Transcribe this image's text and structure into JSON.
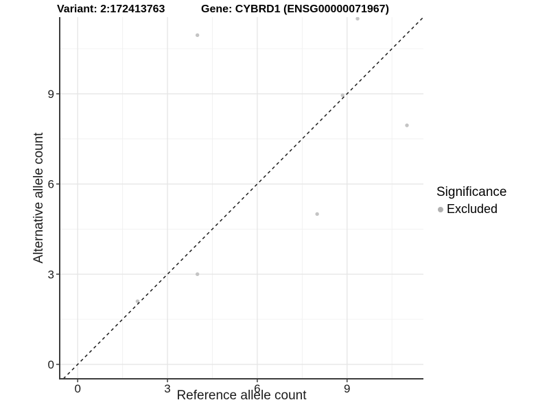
{
  "titles": {
    "variant": "Variant: 2:172413763",
    "gene": "Gene: CYBRD1 (ENSG00000071967)"
  },
  "legend": {
    "title": "Significance",
    "items": [
      {
        "label": "Excluded",
        "color": "#b0b0b0"
      }
    ]
  },
  "chart_data": {
    "type": "scatter",
    "title": "Variant: 2:172413763 — Gene: CYBRD1 (ENSG00000071967)",
    "xlabel": "Reference allele count",
    "ylabel": "Alternative allele count",
    "xlim": [
      -0.6,
      11.55
    ],
    "ylim": [
      -0.48,
      11.55
    ],
    "x_breaks": [
      0,
      3,
      6,
      9
    ],
    "y_breaks": [
      0,
      3,
      6,
      9
    ],
    "x_minor_breaks": [
      1.5,
      4.5,
      7.5,
      10.5
    ],
    "y_minor_breaks": [
      1.5,
      4.5,
      7.5,
      10.5
    ],
    "grid": true,
    "legend_position": "right",
    "identity_line": {
      "slope": 1,
      "intercept": 0,
      "style": "dashed",
      "color": "#1a1a1a"
    },
    "series": [
      {
        "name": "Excluded",
        "color": "#c4c4c4",
        "points": [
          {
            "x": 4.0,
            "y": 10.95
          },
          {
            "x": 9.35,
            "y": 11.5
          },
          {
            "x": 8.85,
            "y": 8.95
          },
          {
            "x": 11.0,
            "y": 7.95
          },
          {
            "x": 8.0,
            "y": 5.0
          },
          {
            "x": 4.0,
            "y": 3.0
          },
          {
            "x": 2.0,
            "y": 2.1
          }
        ]
      }
    ],
    "colors": {
      "grid_major": "#e5e5e5",
      "grid_minor": "#f0f0f0",
      "axis": "#3c3c3c",
      "tick_label": "#1a1a1a"
    }
  }
}
